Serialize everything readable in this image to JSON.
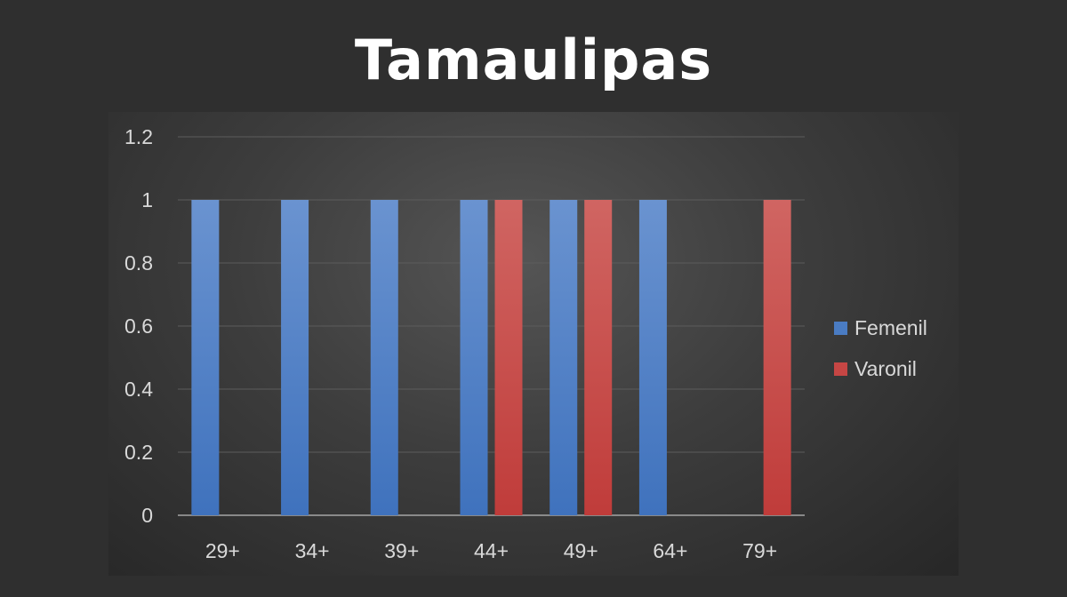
{
  "chart_data": {
    "type": "bar",
    "title": "Tamaulipas",
    "categories": [
      "29+",
      "34+",
      "39+",
      "44+",
      "49+",
      "64+",
      "79+"
    ],
    "series": [
      {
        "name": "Femenil",
        "color": "#4a7cc3",
        "values": [
          1,
          1,
          1,
          1,
          1,
          1,
          0
        ]
      },
      {
        "name": "Varonil",
        "color": "#c64644",
        "values": [
          0,
          0,
          0,
          1,
          1,
          0,
          1
        ]
      }
    ],
    "yticks": [
      "0",
      "0.2",
      "0.4",
      "0.6",
      "0.8",
      "1",
      "1.2"
    ],
    "ylim": [
      0,
      1.2
    ],
    "grid": true,
    "legend": "right"
  }
}
